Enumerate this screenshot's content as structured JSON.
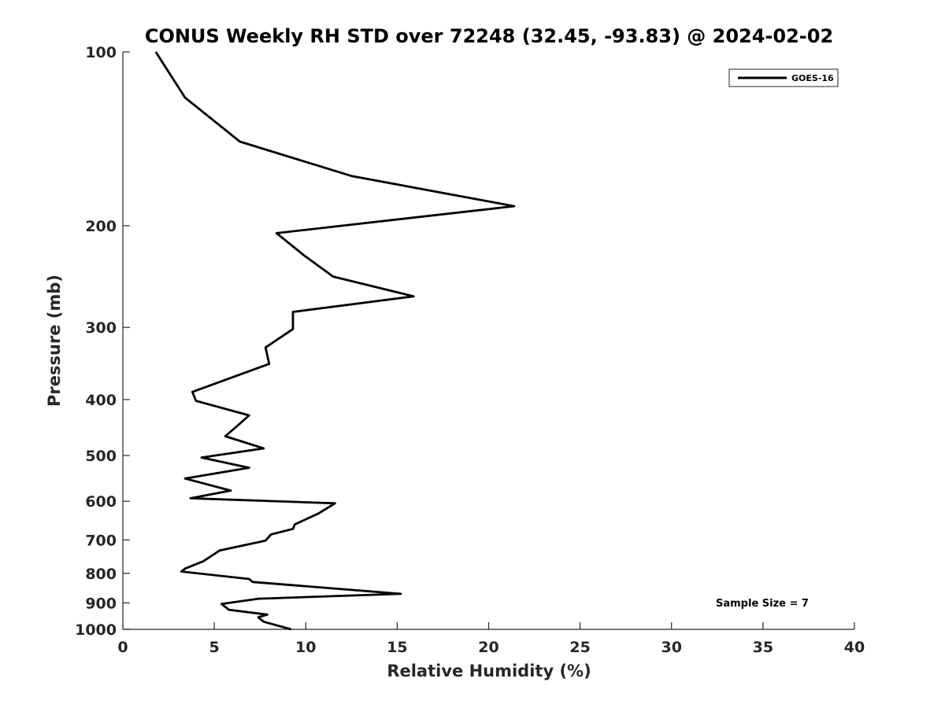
{
  "chart_data": {
    "type": "line",
    "title": "CONUS Weekly RH STD over 72248 (32.45, -93.83) @ 2024-02-02",
    "xlabel": "Relative Humidity (%)",
    "ylabel": "Pressure (mb)",
    "xlim": [
      0,
      40
    ],
    "ylim": [
      100,
      1000
    ],
    "yscale": "log",
    "y_reversed": true,
    "grid": false,
    "legend_position": "top-right",
    "xticks": [
      0,
      5,
      10,
      15,
      20,
      25,
      30,
      35,
      40
    ],
    "yticks": [
      100,
      200,
      300,
      400,
      500,
      600,
      700,
      800,
      900,
      1000
    ],
    "xtick_labels": [
      "0",
      "5",
      "10",
      "15",
      "20",
      "25",
      "30",
      "35",
      "40"
    ],
    "ytick_labels": [
      "100",
      "200",
      "300",
      "400",
      "500",
      "600",
      "700",
      "800",
      "900",
      "1000"
    ],
    "annotation": "Sample Size = 7",
    "series": [
      {
        "name": "GOES-16",
        "color": "#000000",
        "x": [
          1.8,
          3.4,
          6.4,
          12.5,
          21.4,
          8.4,
          9.9,
          11.5,
          15.9,
          9.3,
          9.3,
          7.8,
          8.0,
          3.8,
          4.0,
          6.9,
          6.3,
          5.6,
          7.7,
          4.3,
          6.9,
          3.4,
          5.9,
          3.7,
          11.6,
          10.7,
          9.4,
          9.3,
          8.1,
          7.8,
          5.3,
          4.4,
          3.4,
          3.2,
          6.9,
          7.1,
          15.2,
          7.4,
          5.4,
          5.8,
          7.9,
          7.4,
          7.7,
          9.2
        ],
        "y": [
          100,
          120,
          143,
          164,
          185,
          206,
          225,
          245,
          265,
          282,
          302,
          325,
          347,
          388,
          402,
          426,
          443,
          463,
          486,
          504,
          525,
          548,
          575,
          593,
          605,
          630,
          658,
          670,
          685,
          702,
          730,
          762,
          785,
          794,
          818,
          828,
          868,
          885,
          904,
          925,
          943,
          953,
          970,
          1000
        ]
      }
    ]
  }
}
